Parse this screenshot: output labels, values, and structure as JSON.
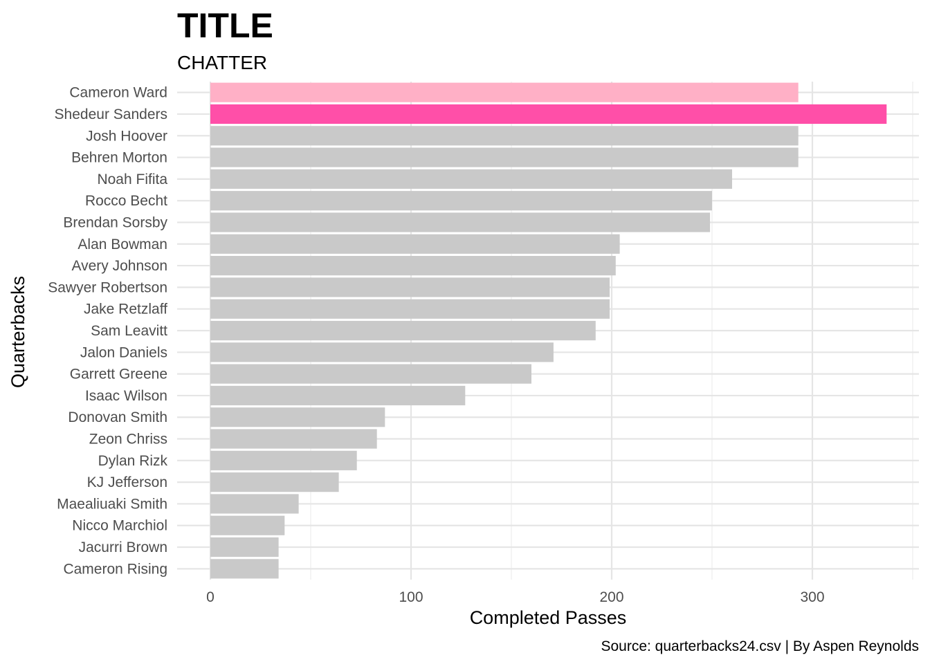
{
  "chart_data": {
    "type": "bar",
    "orientation": "horizontal",
    "title": "TITLE",
    "subtitle": "CHATTER",
    "xlabel": "Completed Passes",
    "ylabel": "Quarterbacks",
    "caption": "Source: quarterbacks24.csv | By Aspen Reynolds",
    "xlim": [
      0,
      350
    ],
    "x_ticks": [
      0,
      100,
      200,
      300
    ],
    "grid": true,
    "legend": "none",
    "categories": [
      "Cameron Ward",
      "Shedeur Sanders",
      "Josh Hoover",
      "Behren Morton",
      "Noah Fifita",
      "Rocco Becht",
      "Brendan Sorsby",
      "Alan Bowman",
      "Avery Johnson",
      "Sawyer Robertson",
      "Jake Retzlaff",
      "Sam Leavitt",
      "Jalon Daniels",
      "Garrett Greene",
      "Isaac Wilson",
      "Donovan Smith",
      "Zeon Chriss",
      "Dylan Rizk",
      "KJ Jefferson",
      "Maealiuaki Smith",
      "Nicco Marchiol",
      "Jacurri Brown",
      "Cameron Rising"
    ],
    "values": [
      293,
      337,
      293,
      293,
      260,
      250,
      249,
      204,
      202,
      199,
      199,
      192,
      171,
      160,
      127,
      87,
      83,
      73,
      64,
      44,
      37,
      34,
      34
    ],
    "colors": {
      "Cameron Ward": "#FFB0C6",
      "Shedeur Sanders": "#FF4FA8",
      "default": "#C9C9C9"
    }
  }
}
